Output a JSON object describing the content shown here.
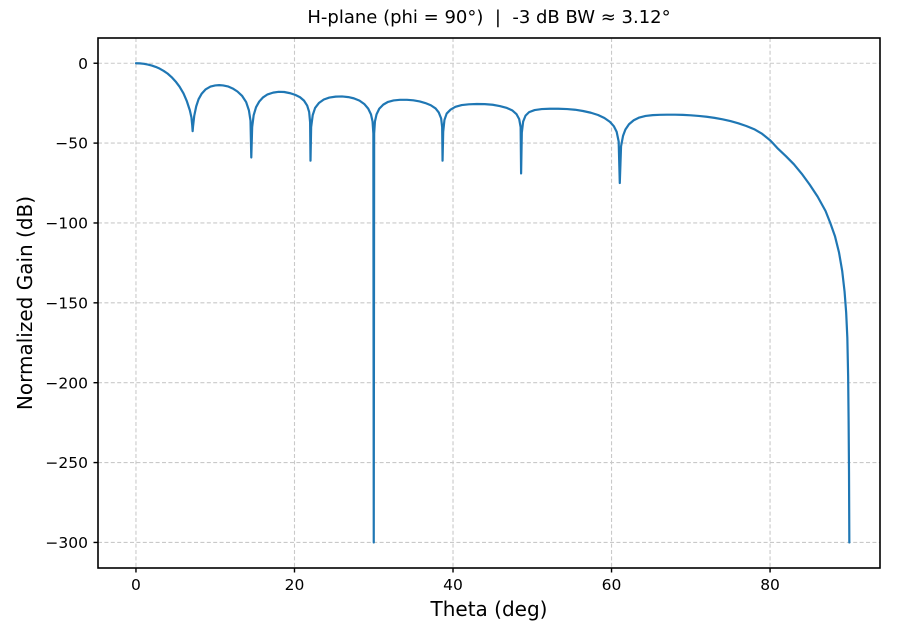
{
  "chart_data": {
    "type": "line",
    "title": "H-plane (phi = 90°)  |  -3 dB BW ≈ 3.12°",
    "xlabel": "Theta (deg)",
    "ylabel": "Normalized Gain (dB)",
    "xlim": [
      -4.79,
      93.87
    ],
    "ylim": [
      -316,
      15.8
    ],
    "x_ticks": [
      0,
      20,
      40,
      60,
      80
    ],
    "x_tick_labels": [
      "0",
      "20",
      "40",
      "60",
      "80"
    ],
    "y_ticks": [
      0,
      -50,
      -100,
      -150,
      -200,
      -250,
      -300
    ],
    "y_tick_labels": [
      "0",
      "−50",
      "−100",
      "−150",
      "−200",
      "−250",
      "−300"
    ],
    "grid": true,
    "grid_style": "dashed",
    "legend": "none",
    "line_color": "#1f77b4",
    "beamwidth_3db_deg": 3.12,
    "floor_db": -300,
    "nulls_deg": [
      7.15,
      14.55,
      22.02,
      30,
      38.68,
      48.59,
      61.04,
      90
    ],
    "sidelobe_peaks_db": [
      -13.7,
      -17.9,
      -20.8,
      -22.9,
      -25.5,
      -28.5,
      -32.2
    ],
    "series": [
      {
        "name": "Normalized gain",
        "points": [
          [
            0,
            0
          ],
          [
            0.5,
            -0.1
          ],
          [
            1,
            -0.35
          ],
          [
            1.5,
            -0.8
          ],
          [
            2,
            -1.45
          ],
          [
            2.5,
            -2.3
          ],
          [
            3,
            -3.4
          ],
          [
            3.5,
            -4.8
          ],
          [
            4,
            -6.5
          ],
          [
            4.5,
            -8.7
          ],
          [
            5,
            -11.4
          ],
          [
            5.5,
            -14.7
          ],
          [
            6,
            -18.9
          ],
          [
            6.4,
            -23.5
          ],
          [
            6.8,
            -29.5
          ],
          [
            7,
            -34
          ],
          [
            7.1,
            -39
          ],
          [
            7.15,
            -42.5
          ],
          [
            7.2,
            -39.5
          ],
          [
            7.35,
            -33
          ],
          [
            7.6,
            -27
          ],
          [
            7.9,
            -22.5
          ],
          [
            8.3,
            -19
          ],
          [
            8.8,
            -16.3
          ],
          [
            9.4,
            -14.6
          ],
          [
            10,
            -13.9
          ],
          [
            10.5,
            -13.7
          ],
          [
            11,
            -13.9
          ],
          [
            11.6,
            -14.5
          ],
          [
            12.2,
            -15.8
          ],
          [
            12.8,
            -17.7
          ],
          [
            13.4,
            -20.5
          ],
          [
            13.9,
            -24.3
          ],
          [
            14.25,
            -29.5
          ],
          [
            14.45,
            -36
          ],
          [
            14.55,
            -59
          ],
          [
            14.66,
            -40
          ],
          [
            14.85,
            -32.5
          ],
          [
            15.15,
            -27.5
          ],
          [
            15.55,
            -24
          ],
          [
            16,
            -21.5
          ],
          [
            16.6,
            -19.5
          ],
          [
            17.3,
            -18.4
          ],
          [
            18,
            -17.9
          ],
          [
            18.7,
            -18
          ],
          [
            19.4,
            -18.7
          ],
          [
            20.1,
            -19.8
          ],
          [
            20.7,
            -21.3
          ],
          [
            21.2,
            -23.4
          ],
          [
            21.6,
            -26.5
          ],
          [
            21.85,
            -30.5
          ],
          [
            21.97,
            -37
          ],
          [
            22.02,
            -61
          ],
          [
            22.1,
            -40
          ],
          [
            22.3,
            -32.5
          ],
          [
            22.6,
            -28
          ],
          [
            23.1,
            -24.8
          ],
          [
            23.7,
            -22.7
          ],
          [
            24.4,
            -21.5
          ],
          [
            25.2,
            -20.9
          ],
          [
            26,
            -20.8
          ],
          [
            26.8,
            -21.2
          ],
          [
            27.5,
            -22
          ],
          [
            28.2,
            -23.4
          ],
          [
            28.8,
            -25.5
          ],
          [
            29.3,
            -28.4
          ],
          [
            29.65,
            -32
          ],
          [
            29.85,
            -36.5
          ],
          [
            29.95,
            -44
          ],
          [
            30,
            -300
          ],
          [
            30.05,
            -44
          ],
          [
            30.15,
            -36.5
          ],
          [
            30.35,
            -32
          ],
          [
            30.7,
            -28.4
          ],
          [
            31.2,
            -25.9
          ],
          [
            31.8,
            -24.2
          ],
          [
            32.5,
            -23.3
          ],
          [
            33.3,
            -22.9
          ],
          [
            34.2,
            -22.9
          ],
          [
            35,
            -23.2
          ],
          [
            35.8,
            -23.9
          ],
          [
            36.5,
            -24.9
          ],
          [
            37.2,
            -26.3
          ],
          [
            37.8,
            -28.3
          ],
          [
            38.2,
            -30.8
          ],
          [
            38.5,
            -34.5
          ],
          [
            38.63,
            -40
          ],
          [
            38.68,
            -61
          ],
          [
            38.76,
            -43
          ],
          [
            38.92,
            -35.5
          ],
          [
            39.2,
            -31.5
          ],
          [
            39.7,
            -29
          ],
          [
            40.3,
            -27.3
          ],
          [
            41.1,
            -26.2
          ],
          [
            42,
            -25.7
          ],
          [
            43,
            -25.5
          ],
          [
            44,
            -25.6
          ],
          [
            45,
            -26
          ],
          [
            45.9,
            -26.8
          ],
          [
            46.8,
            -28
          ],
          [
            47.5,
            -29.6
          ],
          [
            48,
            -31.8
          ],
          [
            48.35,
            -35
          ],
          [
            48.53,
            -40
          ],
          [
            48.59,
            -69
          ],
          [
            48.68,
            -43.5
          ],
          [
            48.85,
            -36.5
          ],
          [
            49.15,
            -32.8
          ],
          [
            49.6,
            -30.6
          ],
          [
            50.3,
            -29.3
          ],
          [
            51.2,
            -28.7
          ],
          [
            52.2,
            -28.5
          ],
          [
            53.3,
            -28.5
          ],
          [
            54.4,
            -28.7
          ],
          [
            55.4,
            -29.1
          ],
          [
            56.4,
            -29.9
          ],
          [
            57.4,
            -31
          ],
          [
            58.3,
            -32.4
          ],
          [
            59.1,
            -34.3
          ],
          [
            59.8,
            -36.7
          ],
          [
            60.3,
            -39.5
          ],
          [
            60.65,
            -43
          ],
          [
            60.9,
            -49
          ],
          [
            61.04,
            -75
          ],
          [
            61.2,
            -52
          ],
          [
            61.45,
            -45.5
          ],
          [
            61.75,
            -41.5
          ],
          [
            62.2,
            -38.2
          ],
          [
            62.8,
            -35.7
          ],
          [
            63.5,
            -34
          ],
          [
            64.3,
            -33
          ],
          [
            65.2,
            -32.5
          ],
          [
            66.1,
            -32.3
          ],
          [
            67,
            -32.2
          ],
          [
            68,
            -32.2
          ],
          [
            69,
            -32.35
          ],
          [
            70,
            -32.6
          ],
          [
            71,
            -33
          ],
          [
            72,
            -33.5
          ],
          [
            73,
            -34.2
          ],
          [
            74,
            -35.1
          ],
          [
            75,
            -36.2
          ],
          [
            76,
            -37.6
          ],
          [
            77,
            -39.3
          ],
          [
            78,
            -41.3
          ],
          [
            79,
            -44.2
          ],
          [
            80,
            -48.2
          ],
          [
            80.35,
            -50
          ],
          [
            81,
            -53.5
          ],
          [
            82,
            -58.2
          ],
          [
            83,
            -63.2
          ],
          [
            84,
            -69.2
          ],
          [
            85,
            -76
          ],
          [
            86,
            -83.5
          ],
          [
            87,
            -92.5
          ],
          [
            87.6,
            -100
          ],
          [
            88.2,
            -108.5
          ],
          [
            88.7,
            -118.5
          ],
          [
            89.1,
            -130
          ],
          [
            89.4,
            -143
          ],
          [
            89.6,
            -156
          ],
          [
            89.75,
            -172
          ],
          [
            89.85,
            -196
          ],
          [
            89.91,
            -224
          ],
          [
            89.96,
            -256
          ],
          [
            90,
            -300
          ]
        ]
      }
    ]
  }
}
